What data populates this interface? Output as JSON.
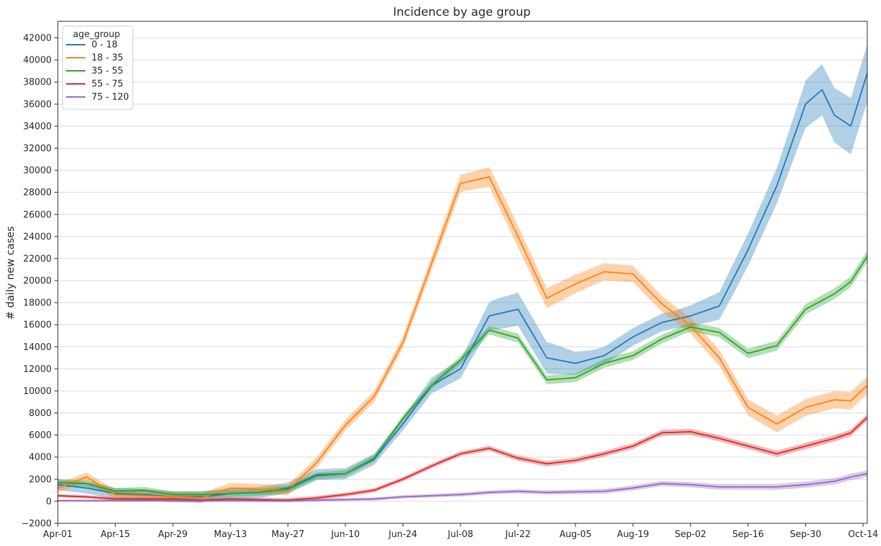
{
  "chart_data": {
    "type": "line",
    "title": "Incidence by age group",
    "xlabel": "",
    "ylabel": "# daily new cases",
    "ylim": [
      -2000,
      43500
    ],
    "x_ticks": [
      "Apr-01",
      "Apr-15",
      "Apr-29",
      "May-13",
      "May-27",
      "Jun-10",
      "Jun-24",
      "Jul-08",
      "Jul-22",
      "Aug-05",
      "Aug-19",
      "Sep-02",
      "Sep-16",
      "Sep-30",
      "Oct-14"
    ],
    "y_ticks": [
      -2000,
      0,
      2000,
      4000,
      6000,
      8000,
      10000,
      12000,
      14000,
      16000,
      18000,
      20000,
      22000,
      24000,
      26000,
      28000,
      30000,
      32000,
      34000,
      36000,
      38000,
      40000,
      42000
    ],
    "x_range_days": [
      0,
      197
    ],
    "grid": "horizontal",
    "confidence_band": true,
    "legend": {
      "title": "age_group",
      "placement": "top-left"
    },
    "series": [
      {
        "name": "0 - 18",
        "color": "#1f77b4",
        "band_width": [
          [
            0,
            500
          ],
          [
            80,
            500
          ],
          [
            100,
            900
          ],
          [
            107,
            1400
          ],
          [
            112,
            1500
          ],
          [
            120,
            1400
          ],
          [
            130,
            800
          ],
          [
            150,
            800
          ],
          [
            165,
            1400
          ],
          [
            175,
            1600
          ],
          [
            183,
            2200
          ],
          [
            190,
            2500
          ],
          [
            197,
            2600
          ]
        ],
        "points": [
          [
            0,
            1500
          ],
          [
            7,
            1200
          ],
          [
            14,
            700
          ],
          [
            21,
            600
          ],
          [
            28,
            400
          ],
          [
            35,
            400
          ],
          [
            42,
            700
          ],
          [
            49,
            800
          ],
          [
            56,
            1200
          ],
          [
            63,
            2400
          ],
          [
            70,
            2500
          ],
          [
            77,
            3800
          ],
          [
            84,
            7000
          ],
          [
            91,
            10500
          ],
          [
            98,
            12000
          ],
          [
            105,
            16800
          ],
          [
            112,
            17400
          ],
          [
            119,
            13000
          ],
          [
            126,
            12500
          ],
          [
            133,
            13200
          ],
          [
            140,
            14900
          ],
          [
            147,
            16200
          ],
          [
            154,
            16800
          ],
          [
            161,
            17700
          ],
          [
            168,
            22800
          ],
          [
            175,
            28600
          ],
          [
            182,
            36000
          ],
          [
            186,
            37300
          ],
          [
            189,
            35000
          ],
          [
            193,
            34000
          ],
          [
            197,
            38800
          ]
        ]
      },
      {
        "name": "18 - 35",
        "color": "#ff7f0e",
        "band_width": [
          [
            0,
            400
          ],
          [
            80,
            500
          ],
          [
            100,
            800
          ],
          [
            110,
            1000
          ],
          [
            130,
            800
          ],
          [
            150,
            700
          ],
          [
            197,
            800
          ]
        ],
        "points": [
          [
            0,
            1200
          ],
          [
            7,
            2200
          ],
          [
            14,
            600
          ],
          [
            21,
            500
          ],
          [
            28,
            400
          ],
          [
            35,
            300
          ],
          [
            42,
            1200
          ],
          [
            49,
            1100
          ],
          [
            56,
            1000
          ],
          [
            63,
            3500
          ],
          [
            70,
            6900
          ],
          [
            77,
            9500
          ],
          [
            84,
            14400
          ],
          [
            91,
            21600
          ],
          [
            98,
            28800
          ],
          [
            105,
            29400
          ],
          [
            112,
            24000
          ],
          [
            119,
            18400
          ],
          [
            126,
            19700
          ],
          [
            133,
            20800
          ],
          [
            140,
            20600
          ],
          [
            147,
            17900
          ],
          [
            154,
            15900
          ],
          [
            161,
            13000
          ],
          [
            168,
            8500
          ],
          [
            175,
            7000
          ],
          [
            182,
            8500
          ],
          [
            189,
            9200
          ],
          [
            193,
            9100
          ],
          [
            197,
            10500
          ]
        ]
      },
      {
        "name": "35 - 55",
        "color": "#2ca02c",
        "band_width": [
          [
            0,
            300
          ],
          [
            80,
            300
          ],
          [
            110,
            400
          ],
          [
            150,
            400
          ],
          [
            197,
            500
          ]
        ],
        "points": [
          [
            0,
            1700
          ],
          [
            7,
            1600
          ],
          [
            14,
            900
          ],
          [
            21,
            1000
          ],
          [
            28,
            600
          ],
          [
            35,
            600
          ],
          [
            42,
            700
          ],
          [
            49,
            800
          ],
          [
            56,
            1100
          ],
          [
            63,
            2300
          ],
          [
            70,
            2500
          ],
          [
            77,
            3900
          ],
          [
            84,
            7500
          ],
          [
            91,
            10500
          ],
          [
            98,
            12800
          ],
          [
            105,
            15500
          ],
          [
            112,
            14800
          ],
          [
            119,
            11000
          ],
          [
            126,
            11200
          ],
          [
            133,
            12500
          ],
          [
            140,
            13200
          ],
          [
            147,
            14700
          ],
          [
            154,
            15800
          ],
          [
            161,
            15300
          ],
          [
            168,
            13400
          ],
          [
            175,
            14100
          ],
          [
            182,
            17400
          ],
          [
            189,
            18800
          ],
          [
            193,
            19900
          ],
          [
            197,
            22200
          ]
        ]
      },
      {
        "name": "55 - 75",
        "color": "#d62728",
        "band_width": [
          [
            0,
            150
          ],
          [
            80,
            200
          ],
          [
            120,
            250
          ],
          [
            197,
            300
          ]
        ],
        "points": [
          [
            0,
            500
          ],
          [
            7,
            400
          ],
          [
            14,
            200
          ],
          [
            21,
            200
          ],
          [
            28,
            200
          ],
          [
            35,
            100
          ],
          [
            42,
            200
          ],
          [
            49,
            150
          ],
          [
            56,
            100
          ],
          [
            63,
            300
          ],
          [
            70,
            600
          ],
          [
            77,
            1000
          ],
          [
            84,
            2000
          ],
          [
            91,
            3200
          ],
          [
            98,
            4300
          ],
          [
            105,
            4800
          ],
          [
            112,
            3900
          ],
          [
            119,
            3400
          ],
          [
            126,
            3700
          ],
          [
            133,
            4300
          ],
          [
            140,
            5000
          ],
          [
            147,
            6200
          ],
          [
            154,
            6300
          ],
          [
            161,
            5700
          ],
          [
            168,
            5000
          ],
          [
            175,
            4300
          ],
          [
            182,
            5000
          ],
          [
            189,
            5700
          ],
          [
            193,
            6200
          ],
          [
            197,
            7600
          ]
        ]
      },
      {
        "name": "75 - 120",
        "color": "#9467bd",
        "band_width": [
          [
            0,
            100
          ],
          [
            80,
            150
          ],
          [
            120,
            200
          ],
          [
            197,
            300
          ]
        ],
        "points": [
          [
            0,
            50
          ],
          [
            14,
            50
          ],
          [
            28,
            50
          ],
          [
            42,
            50
          ],
          [
            56,
            50
          ],
          [
            63,
            100
          ],
          [
            70,
            150
          ],
          [
            77,
            200
          ],
          [
            84,
            400
          ],
          [
            91,
            500
          ],
          [
            98,
            600
          ],
          [
            105,
            800
          ],
          [
            112,
            900
          ],
          [
            119,
            800
          ],
          [
            126,
            850
          ],
          [
            133,
            900
          ],
          [
            140,
            1200
          ],
          [
            147,
            1600
          ],
          [
            154,
            1500
          ],
          [
            161,
            1300
          ],
          [
            168,
            1300
          ],
          [
            175,
            1300
          ],
          [
            182,
            1500
          ],
          [
            189,
            1800
          ],
          [
            193,
            2200
          ],
          [
            197,
            2500
          ]
        ]
      }
    ]
  }
}
